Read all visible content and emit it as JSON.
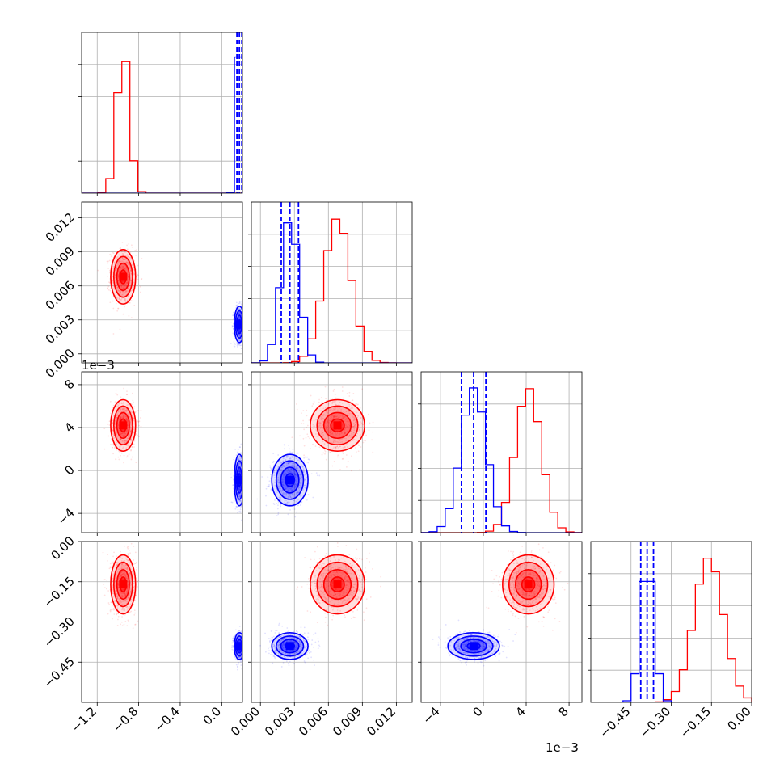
{
  "chart_data": {
    "type": "corner",
    "title": "",
    "parameters": [
      {
        "name": "",
        "range": [
          -1.35,
          0.2
        ],
        "ticks": [
          -1.2,
          -0.8,
          -0.4,
          0.0
        ],
        "tick_labels": [
          "−1.2",
          "−0.8",
          "−0.4",
          "0.0"
        ],
        "offset_text": ""
      },
      {
        "name": "",
        "range": [
          -0.0008,
          0.0134
        ],
        "ticks": [
          0.0,
          0.003,
          0.006,
          0.009,
          0.012
        ],
        "tick_labels": [
          "0.000",
          "0.003",
          "0.006",
          "0.009",
          "0.012"
        ],
        "offset_text": ""
      },
      {
        "name": "",
        "range": [
          -0.0058,
          0.0092
        ],
        "ticks": [
          -0.004,
          0.0,
          0.004,
          0.008
        ],
        "tick_labels": [
          "−4",
          "0",
          "4",
          "8"
        ],
        "offset_text": "1e−3"
      },
      {
        "name": "",
        "range": [
          -0.6,
          0.0
        ],
        "ticks": [
          -0.45,
          -0.3,
          -0.15,
          0.0
        ],
        "tick_labels": [
          "−0.45",
          "−0.30",
          "−0.15",
          "0.00"
        ],
        "offset_text": ""
      }
    ],
    "series": [
      {
        "color": "#ff0000",
        "means": [
          -0.95,
          0.0068,
          0.0042,
          -0.16
        ],
        "sds": [
          0.06,
          0.0012,
          0.0012,
          0.055
        ],
        "quantile_lines": false
      },
      {
        "color": "#0000ff",
        "means": [
          0.17,
          0.0026,
          -0.0009,
          -0.39
        ],
        "sds": [
          0.025,
          0.0008,
          0.0012,
          0.025
        ],
        "quantile_lines": true
      }
    ],
    "grid": true
  }
}
